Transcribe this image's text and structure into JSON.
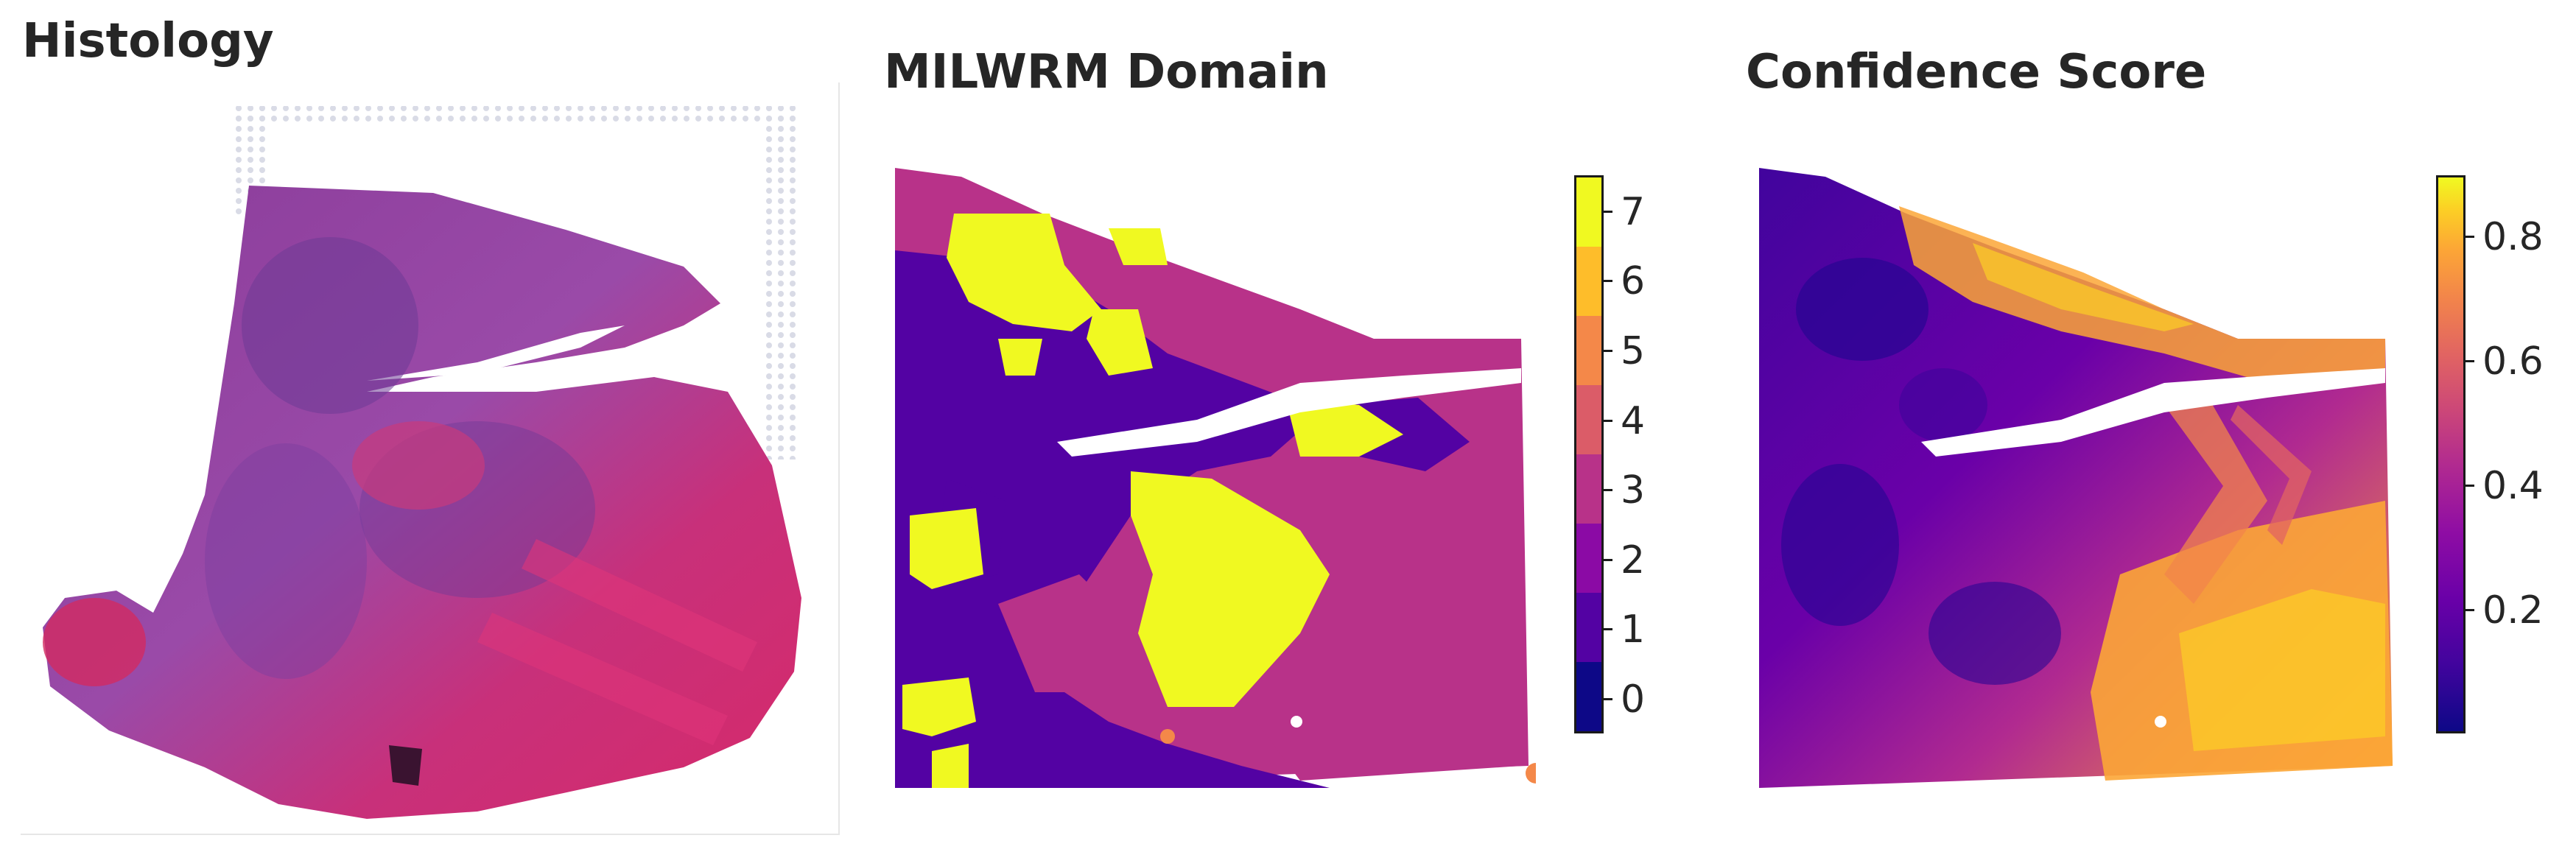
{
  "panels": {
    "histology": {
      "title": "Histology"
    },
    "milwrm": {
      "title": "MILWRM Domain",
      "colorbar": {
        "ticks": [
          "0",
          "1",
          "2",
          "3",
          "4",
          "5",
          "6",
          "7"
        ],
        "colors": [
          "#0d0887",
          "#5302a3",
          "#8b0aa5",
          "#b83289",
          "#db5c68",
          "#f48849",
          "#febd2a",
          "#f0f921"
        ]
      }
    },
    "confidence": {
      "title": "Confidence Score",
      "colorbar": {
        "ticks": [
          "0.2",
          "0.4",
          "0.6",
          "0.8"
        ],
        "colormap": "plasma"
      }
    }
  }
}
